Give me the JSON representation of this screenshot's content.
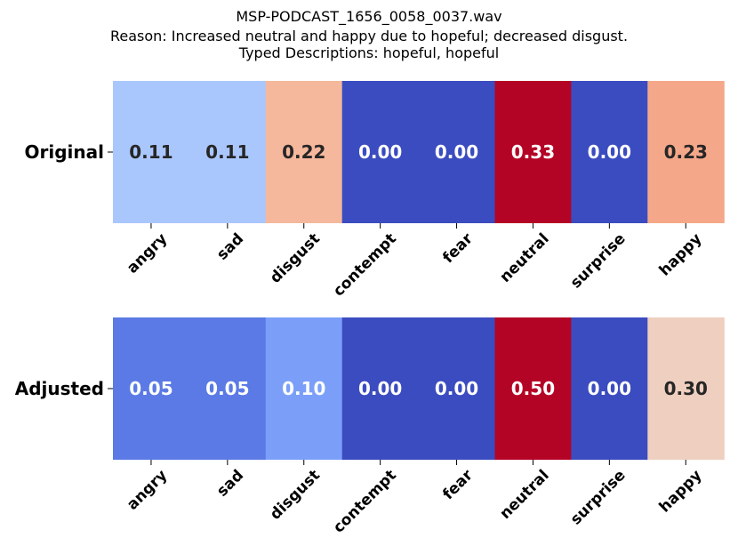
{
  "title": {
    "line1": "MSP-PODCAST_1656_0058_0037.wav",
    "line2": "Reason: Increased neutral and happy due to hopeful; decreased disgust.",
    "line3": "Typed Descriptions: hopeful, hopeful"
  },
  "chart_data": [
    {
      "type": "heatmap",
      "row_label": "Original",
      "categories": [
        "angry",
        "sad",
        "disgust",
        "contempt",
        "fear",
        "neutral",
        "surprise",
        "happy"
      ],
      "values": [
        0.11,
        0.11,
        0.22,
        0.0,
        0.0,
        0.33,
        0.0,
        0.23
      ],
      "value_labels": [
        "0.11",
        "0.11",
        "0.22",
        "0.00",
        "0.00",
        "0.33",
        "0.00",
        "0.23"
      ],
      "colors": [
        "#aac7fd",
        "#aac7fd",
        "#f6b89c",
        "#3b4cc0",
        "#3b4cc0",
        "#b40426",
        "#3b4cc0",
        "#f5a889"
      ],
      "label_colors": [
        "#262626",
        "#262626",
        "#262626",
        "#ffffff",
        "#ffffff",
        "#ffffff",
        "#ffffff",
        "#262626"
      ],
      "colormap": "coolwarm",
      "colorbar": false
    },
    {
      "type": "heatmap",
      "row_label": "Adjusted",
      "categories": [
        "angry",
        "sad",
        "disgust",
        "contempt",
        "fear",
        "neutral",
        "surprise",
        "happy"
      ],
      "values": [
        0.05,
        0.05,
        0.1,
        0.0,
        0.0,
        0.5,
        0.0,
        0.3
      ],
      "value_labels": [
        "0.05",
        "0.05",
        "0.10",
        "0.00",
        "0.00",
        "0.50",
        "0.00",
        "0.30"
      ],
      "colors": [
        "#5b7ae5",
        "#5b7ae5",
        "#7b9ff9",
        "#3b4cc0",
        "#3b4cc0",
        "#b40426",
        "#3b4cc0",
        "#efcfbf"
      ],
      "label_colors": [
        "#ffffff",
        "#ffffff",
        "#ffffff",
        "#ffffff",
        "#ffffff",
        "#ffffff",
        "#ffffff",
        "#262626"
      ],
      "colormap": "coolwarm",
      "colorbar": false
    }
  ]
}
